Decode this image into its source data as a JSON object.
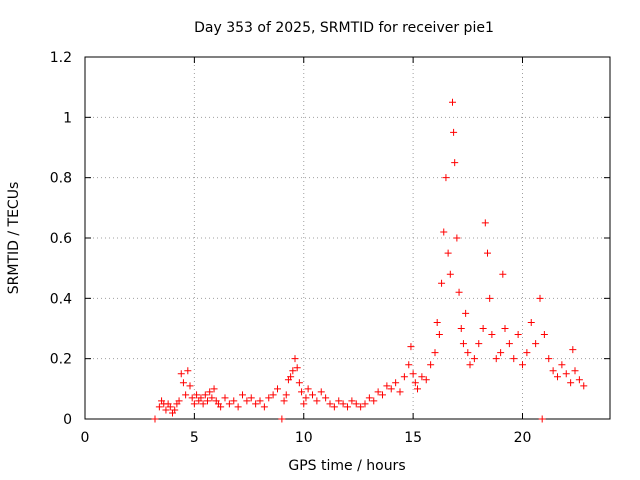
{
  "chart_data": {
    "type": "scatter",
    "title": "Day 353 of 2025, SRMTID for receiver pie1",
    "xlabel": "GPS time / hours",
    "ylabel": "SRMTID / TECUs",
    "xlim": [
      0,
      24
    ],
    "ylim": [
      0,
      1.2
    ],
    "xticks": [
      0,
      5,
      10,
      15,
      20
    ],
    "xtick_labels": [
      "0",
      "5",
      "10",
      "15",
      "20"
    ],
    "yticks": [
      0,
      0.2,
      0.4,
      0.6,
      0.8,
      1.0,
      1.2
    ],
    "ytick_labels": [
      "0",
      "0.2",
      "0.4",
      "0.6",
      "0.8",
      "1",
      "1.2"
    ],
    "grid": true,
    "marker": "+",
    "series": [
      {
        "name": "SRMTID pie1",
        "color": "#ff0000",
        "points": [
          [
            3.2,
            0.0
          ],
          [
            3.4,
            0.04
          ],
          [
            3.5,
            0.06
          ],
          [
            3.6,
            0.05
          ],
          [
            3.7,
            0.03
          ],
          [
            3.8,
            0.05
          ],
          [
            3.9,
            0.04
          ],
          [
            4.0,
            0.02
          ],
          [
            4.1,
            0.03
          ],
          [
            4.2,
            0.05
          ],
          [
            4.3,
            0.06
          ],
          [
            4.4,
            0.15
          ],
          [
            4.5,
            0.12
          ],
          [
            4.6,
            0.08
          ],
          [
            4.7,
            0.16
          ],
          [
            4.8,
            0.11
          ],
          [
            4.9,
            0.07
          ],
          [
            5.0,
            0.05
          ],
          [
            5.1,
            0.08
          ],
          [
            5.2,
            0.06
          ],
          [
            5.3,
            0.07
          ],
          [
            5.4,
            0.05
          ],
          [
            5.5,
            0.08
          ],
          [
            5.6,
            0.06
          ],
          [
            5.7,
            0.09
          ],
          [
            5.8,
            0.07
          ],
          [
            5.9,
            0.1
          ],
          [
            6.0,
            0.06
          ],
          [
            6.1,
            0.05
          ],
          [
            6.2,
            0.04
          ],
          [
            6.4,
            0.07
          ],
          [
            6.6,
            0.05
          ],
          [
            6.8,
            0.06
          ],
          [
            7.0,
            0.04
          ],
          [
            7.2,
            0.08
          ],
          [
            7.4,
            0.06
          ],
          [
            7.6,
            0.07
          ],
          [
            7.8,
            0.05
          ],
          [
            8.0,
            0.06
          ],
          [
            8.2,
            0.04
          ],
          [
            8.4,
            0.07
          ],
          [
            8.6,
            0.08
          ],
          [
            8.8,
            0.1
          ],
          [
            9.0,
            0.0
          ],
          [
            9.1,
            0.06
          ],
          [
            9.2,
            0.08
          ],
          [
            9.3,
            0.13
          ],
          [
            9.4,
            0.14
          ],
          [
            9.5,
            0.16
          ],
          [
            9.6,
            0.2
          ],
          [
            9.7,
            0.17
          ],
          [
            9.8,
            0.12
          ],
          [
            9.9,
            0.09
          ],
          [
            10.0,
            0.05
          ],
          [
            10.1,
            0.07
          ],
          [
            10.2,
            0.1
          ],
          [
            10.4,
            0.08
          ],
          [
            10.6,
            0.06
          ],
          [
            10.8,
            0.09
          ],
          [
            11.0,
            0.07
          ],
          [
            11.2,
            0.05
          ],
          [
            11.4,
            0.04
          ],
          [
            11.6,
            0.06
          ],
          [
            11.8,
            0.05
          ],
          [
            12.0,
            0.04
          ],
          [
            12.2,
            0.06
          ],
          [
            12.4,
            0.05
          ],
          [
            12.6,
            0.04
          ],
          [
            12.8,
            0.05
          ],
          [
            13.0,
            0.07
          ],
          [
            13.2,
            0.06
          ],
          [
            13.4,
            0.09
          ],
          [
            13.6,
            0.08
          ],
          [
            13.8,
            0.11
          ],
          [
            14.0,
            0.1
          ],
          [
            14.2,
            0.12
          ],
          [
            14.4,
            0.09
          ],
          [
            14.6,
            0.14
          ],
          [
            14.8,
            0.18
          ],
          [
            14.9,
            0.24
          ],
          [
            15.0,
            0.15
          ],
          [
            15.1,
            0.12
          ],
          [
            15.2,
            0.1
          ],
          [
            15.4,
            0.14
          ],
          [
            15.6,
            0.13
          ],
          [
            15.8,
            0.18
          ],
          [
            16.0,
            0.22
          ],
          [
            16.1,
            0.32
          ],
          [
            16.2,
            0.28
          ],
          [
            16.3,
            0.45
          ],
          [
            16.4,
            0.62
          ],
          [
            16.5,
            0.8
          ],
          [
            16.6,
            0.55
          ],
          [
            16.7,
            0.48
          ],
          [
            16.8,
            1.05
          ],
          [
            16.85,
            0.95
          ],
          [
            16.9,
            0.85
          ],
          [
            17.0,
            0.6
          ],
          [
            17.1,
            0.42
          ],
          [
            17.2,
            0.3
          ],
          [
            17.3,
            0.25
          ],
          [
            17.4,
            0.35
          ],
          [
            17.5,
            0.22
          ],
          [
            17.6,
            0.18
          ],
          [
            17.8,
            0.2
          ],
          [
            18.0,
            0.25
          ],
          [
            18.2,
            0.3
          ],
          [
            18.3,
            0.65
          ],
          [
            18.4,
            0.55
          ],
          [
            18.5,
            0.4
          ],
          [
            18.6,
            0.28
          ],
          [
            18.8,
            0.2
          ],
          [
            19.0,
            0.22
          ],
          [
            19.1,
            0.48
          ],
          [
            19.2,
            0.3
          ],
          [
            19.4,
            0.25
          ],
          [
            19.6,
            0.2
          ],
          [
            19.8,
            0.28
          ],
          [
            20.0,
            0.18
          ],
          [
            20.2,
            0.22
          ],
          [
            20.4,
            0.32
          ],
          [
            20.6,
            0.25
          ],
          [
            20.8,
            0.4
          ],
          [
            20.9,
            0.0
          ],
          [
            21.0,
            0.28
          ],
          [
            21.2,
            0.2
          ],
          [
            21.4,
            0.16
          ],
          [
            21.6,
            0.14
          ],
          [
            21.8,
            0.18
          ],
          [
            22.0,
            0.15
          ],
          [
            22.2,
            0.12
          ],
          [
            22.3,
            0.23
          ],
          [
            22.4,
            0.16
          ],
          [
            22.6,
            0.13
          ],
          [
            22.8,
            0.11
          ]
        ]
      }
    ]
  }
}
